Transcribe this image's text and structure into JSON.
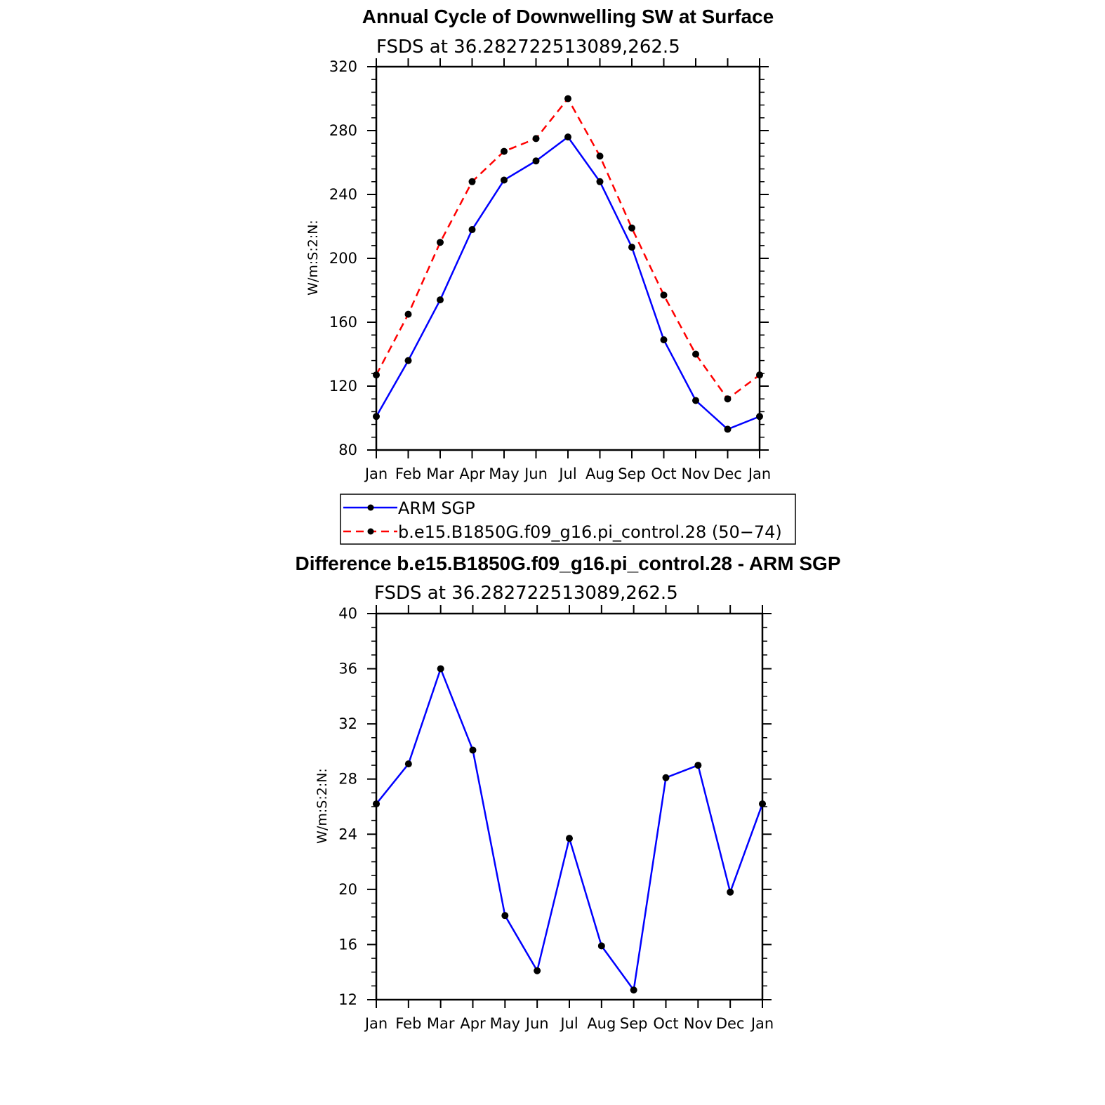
{
  "chart_data": [
    {
      "type": "line",
      "title": "Annual Cycle of Downwelling SW at Surface",
      "subtitle": "FSDS at 36.282722513089,262.5",
      "xlabel": "",
      "ylabel": "W/m:S:2:N:",
      "categories": [
        "Jan",
        "Feb",
        "Mar",
        "Apr",
        "May",
        "Jun",
        "Jul",
        "Aug",
        "Sep",
        "Oct",
        "Nov",
        "Dec",
        "Jan"
      ],
      "ylim": [
        80,
        320
      ],
      "yticks": [
        "80",
        "120",
        "160",
        "200",
        "240",
        "280",
        "320"
      ],
      "grid": false,
      "legend_position": "below",
      "series": [
        {
          "name": "ARM SGP",
          "color": "#0000ff",
          "dash": "solid",
          "values": [
            101,
            136,
            174,
            218,
            249,
            261,
            276,
            248,
            207,
            149,
            111,
            93,
            101
          ]
        },
        {
          "name": "b.e15.B1850G.f09_g16.pi_control.28 (50−74)",
          "color": "#ff0000",
          "dash": "dashed",
          "values": [
            127,
            165,
            210,
            248,
            267,
            275,
            300,
            264,
            219,
            177,
            140,
            112,
            127
          ]
        }
      ]
    },
    {
      "type": "line",
      "title": "Difference b.e15.B1850G.f09_g16.pi_control.28 - ARM SGP",
      "subtitle": "FSDS at 36.282722513089,262.5",
      "xlabel": "",
      "ylabel": "W/m:S:2:N:",
      "categories": [
        "Jan",
        "Feb",
        "Mar",
        "Apr",
        "May",
        "Jun",
        "Jul",
        "Aug",
        "Sep",
        "Oct",
        "Nov",
        "Dec",
        "Jan"
      ],
      "ylim": [
        12,
        40
      ],
      "yticks": [
        "12",
        "16",
        "20",
        "24",
        "28",
        "32",
        "36",
        "40"
      ],
      "grid": false,
      "series": [
        {
          "color": "#0000ff",
          "dash": "solid",
          "values": [
            26.2,
            29.1,
            36.0,
            30.1,
            18.1,
            14.1,
            23.7,
            15.9,
            12.7,
            28.1,
            29.0,
            19.8,
            26.2
          ]
        }
      ]
    }
  ]
}
